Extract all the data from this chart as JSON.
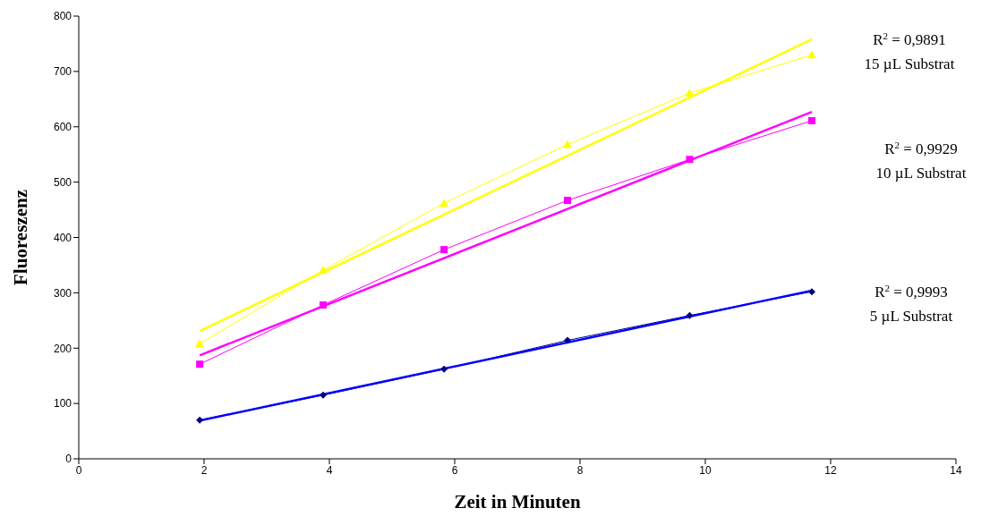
{
  "chart_data": {
    "type": "line",
    "xlabel": "Zeit in Minuten",
    "ylabel": "Fluoreszenz",
    "xlim": [
      0,
      14
    ],
    "xticks": [
      0,
      2,
      4,
      6,
      8,
      10,
      12,
      14
    ],
    "ylim": [
      0,
      800
    ],
    "yticks": [
      0,
      100,
      200,
      300,
      400,
      500,
      600,
      700,
      800
    ],
    "grid": false,
    "legend": false,
    "line_style": "solid",
    "series": [
      {
        "color": "#ffff00",
        "marker": "triangle",
        "x": [
          1.93,
          3.9,
          5.83,
          7.8,
          9.75,
          11.7
        ],
        "values": [
          208,
          341,
          462,
          568,
          661,
          730
        ]
      },
      {
        "color": "#ff00ff",
        "marker": "square",
        "x": [
          1.93,
          3.9,
          5.83,
          7.8,
          9.75,
          11.7
        ],
        "values": [
          171,
          278,
          378,
          467,
          541,
          611
        ]
      },
      {
        "color": "#000080",
        "marker": "diamond",
        "x": [
          1.93,
          3.9,
          5.83,
          7.8,
          9.75,
          11.7
        ],
        "values": [
          70,
          115,
          162,
          214,
          259,
          302
        ]
      },
      {
        "color": "#ffff00",
        "marker": "none",
        "x": [
          1.93,
          11.7
        ],
        "values": [
          231,
          758
        ]
      },
      {
        "color": "#ff00ff",
        "marker": "none",
        "x": [
          1.93,
          11.7
        ],
        "values": [
          187,
          627
        ]
      },
      {
        "color": "#0000ff",
        "marker": "none",
        "x": [
          1.93,
          11.7
        ],
        "values": [
          69,
          304
        ]
      }
    ],
    "annotations": [
      "R$^{2}$ = 0,9891",
      "15 µL Substrat",
      "R$^{2}$ = 0,9929",
      "10 µL Substrat",
      "R$^{2}$ = 0,9993",
      "5 µL Substrat"
    ]
  }
}
